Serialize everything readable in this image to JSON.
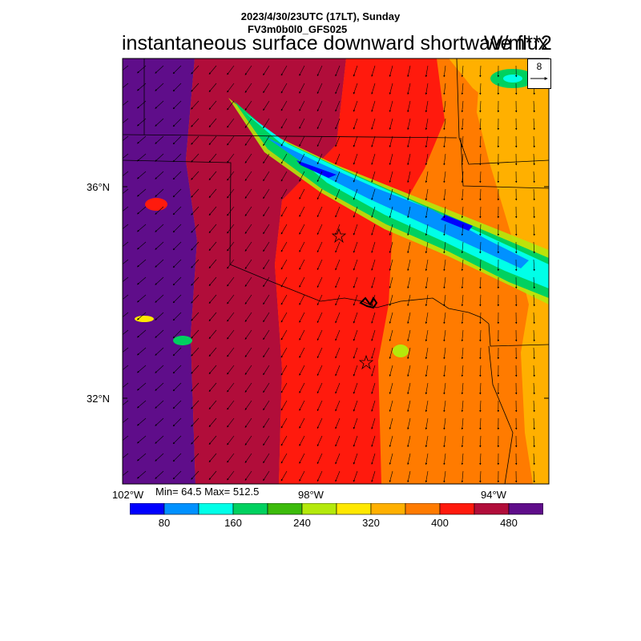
{
  "header": {
    "datetime": "2023/4/30/23UTC (17LT), Sunday",
    "model": "FV3m0b0l0_GFS025"
  },
  "title": "instantaneous surface downward shortwave flux",
  "units": "W/m**2",
  "reference_vector": {
    "value": "8"
  },
  "axes": {
    "latitude_labels": [
      "36°N",
      "32°N"
    ],
    "longitude_labels": [
      "102°W",
      "98°W",
      "94°W"
    ]
  },
  "stats": {
    "text": "Min= 64.5 Max= 512.5",
    "min": 64.5,
    "max": 512.5
  },
  "colorbar": {
    "colors": [
      "#0000ff",
      "#0091ff",
      "#00ffe8",
      "#00d15f",
      "#3cbb0b",
      "#b4e90b",
      "#ffe800",
      "#ffb000",
      "#ff7b00",
      "#ff1a0d",
      "#b10d3a",
      "#5f0d8a"
    ],
    "tick_labels": [
      "80",
      "160",
      "240",
      "320",
      "400",
      "480"
    ]
  },
  "map": {
    "field_bands": [
      {
        "name": "west-purple",
        "level": 500,
        "color": "#5f0d8a"
      },
      {
        "name": "crimson",
        "level": 470,
        "color": "#b10d3a"
      },
      {
        "name": "red",
        "level": 430,
        "color": "#ff1a0d"
      },
      {
        "name": "orange",
        "level": 390,
        "color": "#ff7b00"
      },
      {
        "name": "amber",
        "level": 350,
        "color": "#ffb000"
      }
    ],
    "cloud_band_colors": [
      "#ffe800",
      "#00d15f",
      "#00ffe8",
      "#0091ff",
      "#0000ff"
    ],
    "station_markers": [
      "star",
      "star"
    ]
  }
}
